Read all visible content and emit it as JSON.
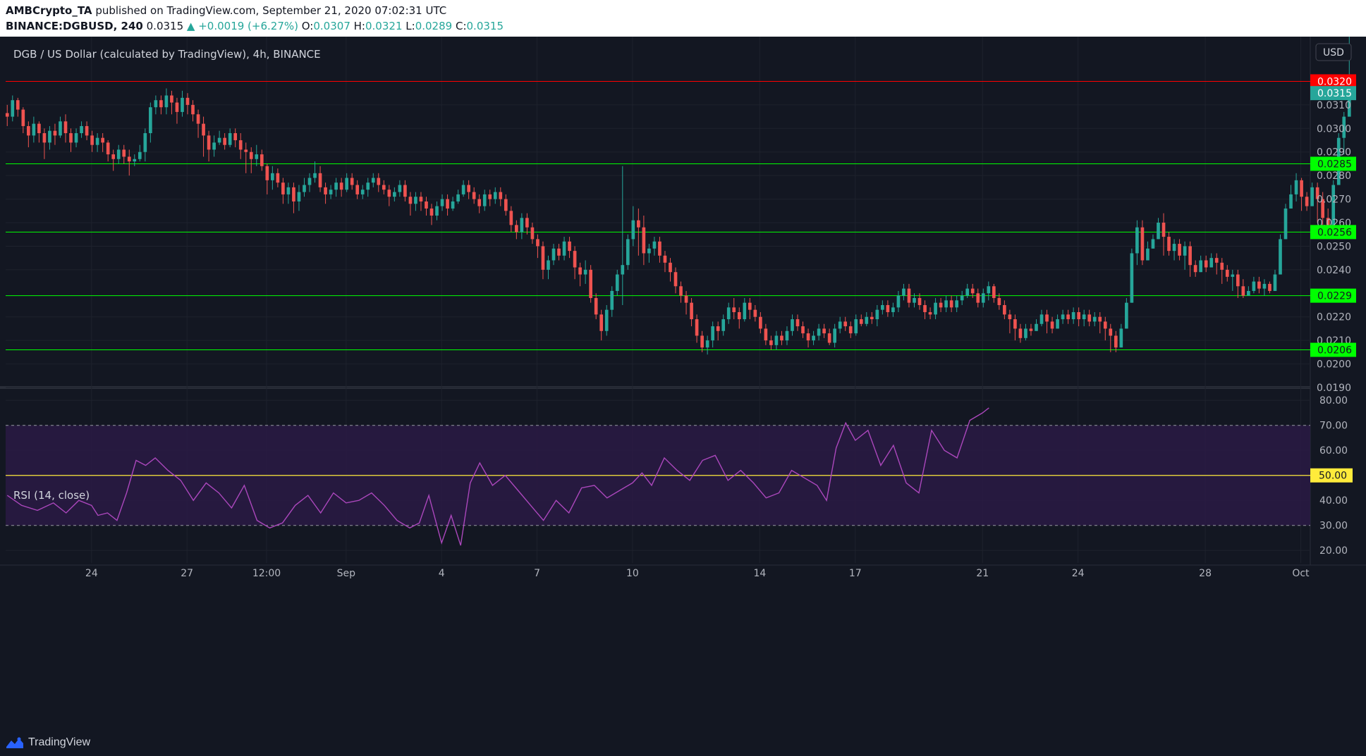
{
  "header": {
    "author": "AMBCrypto_TA",
    "published": "published on TradingView.com, September 21, 2020 07:02:31 UTC",
    "symbol": "BINANCE:DGBUSD, 240",
    "last": "0.0315",
    "change": "▲ +0.0019 (+6.27%)",
    "o_label": "O:",
    "o": "0.0307",
    "h_label": "H:",
    "h": "0.0321",
    "l_label": "L:",
    "l": "0.0289",
    "c_label": "C:",
    "c": "0.0315"
  },
  "footer": {
    "brand": "TradingView"
  },
  "colors": {
    "background": "#131722",
    "up": "#26a69a",
    "down": "#ef5350",
    "resistance": "#ff0000",
    "support": "#00ff00",
    "rsi": "#ab47bc",
    "rsi_band": "#2a1a44",
    "rsi_mid": "#ffeb3b"
  },
  "chart_data": [
    {
      "type": "candlestick",
      "title": "DGB / US Dollar (calculated by TradingView), 4h, BINANCE",
      "currency_button": "USD",
      "ylim": [
        0.019,
        0.0333
      ],
      "y_ticks": [
        "0.0310",
        "0.0300",
        "0.0290",
        "0.0280",
        "0.0270",
        "0.0260",
        "0.0250",
        "0.0240",
        "0.0220",
        "0.0210",
        "0.0200",
        "0.0190"
      ],
      "x_ticks": [
        {
          "label": "24",
          "day": 24
        },
        {
          "label": "27",
          "day": 27
        },
        {
          "label": "12:00",
          "day": 29.5
        },
        {
          "label": "Sep",
          "day": 32
        },
        {
          "label": "4",
          "day": 35
        },
        {
          "label": "7",
          "day": 38
        },
        {
          "label": "10",
          "day": 41
        },
        {
          "label": "14",
          "day": 45
        },
        {
          "label": "17",
          "day": 48
        },
        {
          "label": "21",
          "day": 52
        },
        {
          "label": "24",
          "day": 55
        },
        {
          "label": "28",
          "day": 59
        },
        {
          "label": "Oct",
          "day": 62
        }
      ],
      "x_range_days": [
        21.3,
        62.3
      ],
      "levels": [
        {
          "value": 0.032,
          "label": "0.0320",
          "kind": "resistance"
        },
        {
          "value": 0.0285,
          "label": "0.0285",
          "kind": "support"
        },
        {
          "value": 0.0256,
          "label": "0.0256",
          "kind": "support"
        },
        {
          "value": 0.0229,
          "label": "0.0229",
          "kind": "support"
        },
        {
          "value": 0.0206,
          "label": "0.0206",
          "kind": "support"
        }
      ],
      "last_price": {
        "value": 0.0315,
        "label": "0.0315"
      },
      "start_day": 21.35,
      "bar_days": 0.1667,
      "closes": [
        0.0305,
        0.0312,
        0.0308,
        0.0301,
        0.0297,
        0.0302,
        0.0298,
        0.0294,
        0.0299,
        0.0297,
        0.0303,
        0.0298,
        0.0294,
        0.0298,
        0.0301,
        0.0297,
        0.0293,
        0.0296,
        0.0294,
        0.0289,
        0.0287,
        0.0291,
        0.0288,
        0.0286,
        0.0287,
        0.029,
        0.0298,
        0.0309,
        0.0312,
        0.0309,
        0.0314,
        0.0311,
        0.0307,
        0.0313,
        0.031,
        0.0306,
        0.0302,
        0.0297,
        0.0291,
        0.0294,
        0.0296,
        0.0293,
        0.0298,
        0.0295,
        0.0291,
        0.029,
        0.0287,
        0.0289,
        0.0284,
        0.0278,
        0.0281,
        0.0277,
        0.0272,
        0.0275,
        0.0269,
        0.0273,
        0.0276,
        0.0279,
        0.0281,
        0.0275,
        0.0272,
        0.0274,
        0.0277,
        0.0274,
        0.0279,
        0.0276,
        0.0272,
        0.0274,
        0.0277,
        0.0279,
        0.0276,
        0.0274,
        0.0271,
        0.0273,
        0.0276,
        0.0271,
        0.0268,
        0.0271,
        0.0269,
        0.0266,
        0.0263,
        0.0267,
        0.027,
        0.0266,
        0.0269,
        0.0272,
        0.0276,
        0.0273,
        0.027,
        0.0267,
        0.0272,
        0.027,
        0.0273,
        0.027,
        0.0265,
        0.0259,
        0.0256,
        0.0262,
        0.0258,
        0.0253,
        0.025,
        0.024,
        0.0244,
        0.0249,
        0.0246,
        0.0252,
        0.0248,
        0.0241,
        0.0238,
        0.024,
        0.0228,
        0.0221,
        0.0214,
        0.0223,
        0.0231,
        0.0238,
        0.0242,
        0.0253,
        0.0261,
        0.0258,
        0.0247,
        0.0249,
        0.0252,
        0.0246,
        0.0243,
        0.0239,
        0.0233,
        0.0229,
        0.0226,
        0.0219,
        0.0212,
        0.0207,
        0.021,
        0.0216,
        0.0214,
        0.0219,
        0.0224,
        0.0222,
        0.0219,
        0.0226,
        0.0223,
        0.022,
        0.0215,
        0.021,
        0.0208,
        0.0212,
        0.021,
        0.0214,
        0.0219,
        0.0216,
        0.0213,
        0.021,
        0.0212,
        0.0215,
        0.0213,
        0.0209,
        0.0215,
        0.0218,
        0.0216,
        0.0213,
        0.0219,
        0.0217,
        0.022,
        0.0219,
        0.0223,
        0.0225,
        0.0222,
        0.0224,
        0.0229,
        0.0232,
        0.0226,
        0.0228,
        0.0225,
        0.0222,
        0.0221,
        0.0226,
        0.0224,
        0.0227,
        0.0224,
        0.0227,
        0.0229,
        0.0232,
        0.023,
        0.0226,
        0.023,
        0.0233,
        0.0228,
        0.0225,
        0.0221,
        0.0219,
        0.0215,
        0.0211,
        0.0215,
        0.0214,
        0.0217,
        0.0221,
        0.0218,
        0.0215,
        0.0219,
        0.0221,
        0.0219,
        0.0222,
        0.0219,
        0.0221,
        0.0218,
        0.022,
        0.0218,
        0.0215,
        0.0212,
        0.0207,
        0.0215,
        0.0226,
        0.0247,
        0.0258,
        0.0244,
        0.0249,
        0.0253,
        0.026,
        0.0254,
        0.0248,
        0.0251,
        0.0246,
        0.025,
        0.0242,
        0.0239,
        0.0244,
        0.0241,
        0.0245,
        0.0243,
        0.024,
        0.0237,
        0.0238,
        0.0233,
        0.0229,
        0.0231,
        0.0235,
        0.0232,
        0.0234,
        0.0231,
        0.0238,
        0.0253,
        0.0266,
        0.0272,
        0.0278,
        0.0271,
        0.0267,
        0.0275,
        0.027,
        0.0262,
        0.0258,
        0.0276,
        0.0296,
        0.0305,
        0.0315
      ],
      "highs": [
        0.031,
        0.0314,
        0.0313,
        0.0309,
        0.0303,
        0.0305,
        0.0303,
        0.03,
        0.0301,
        0.0302,
        0.0305,
        0.0306,
        0.03,
        0.03,
        0.0303,
        0.0303,
        0.0299,
        0.0298,
        0.0298,
        0.0295,
        0.0291,
        0.0293,
        0.0293,
        0.0291,
        0.0289,
        0.0293,
        0.03,
        0.0311,
        0.0314,
        0.0314,
        0.0317,
        0.0316,
        0.0313,
        0.0316,
        0.0315,
        0.0312,
        0.0308,
        0.0305,
        0.0299,
        0.0297,
        0.0299,
        0.0298,
        0.03,
        0.03,
        0.0298,
        0.0294,
        0.0292,
        0.0293,
        0.0291,
        0.0285,
        0.0284,
        0.0283,
        0.0279,
        0.0277,
        0.0277,
        0.0276,
        0.0279,
        0.0281,
        0.0286,
        0.0284,
        0.0277,
        0.0276,
        0.0279,
        0.0279,
        0.0281,
        0.0281,
        0.0278,
        0.0276,
        0.0279,
        0.0281,
        0.0281,
        0.0278,
        0.0276,
        0.0275,
        0.0278,
        0.0278,
        0.0273,
        0.0273,
        0.0273,
        0.0271,
        0.0268,
        0.0269,
        0.0272,
        0.0272,
        0.0271,
        0.0274,
        0.0278,
        0.0278,
        0.0275,
        0.0272,
        0.0274,
        0.0274,
        0.0275,
        0.0275,
        0.0272,
        0.0267,
        0.0261,
        0.0264,
        0.0264,
        0.026,
        0.0255,
        0.0252,
        0.0246,
        0.0251,
        0.0251,
        0.0254,
        0.0254,
        0.025,
        0.0243,
        0.0244,
        0.0242,
        0.023,
        0.0223,
        0.0225,
        0.0233,
        0.024,
        0.0284,
        0.0255,
        0.0267,
        0.0266,
        0.0263,
        0.0251,
        0.0254,
        0.0254,
        0.0248,
        0.0245,
        0.0241,
        0.0235,
        0.0231,
        0.0228,
        0.0221,
        0.0214,
        0.0212,
        0.0218,
        0.0218,
        0.0221,
        0.0226,
        0.0228,
        0.0224,
        0.0228,
        0.0228,
        0.0225,
        0.0222,
        0.0217,
        0.0212,
        0.0214,
        0.0214,
        0.0216,
        0.0221,
        0.0221,
        0.0218,
        0.0215,
        0.0214,
        0.0217,
        0.0217,
        0.0215,
        0.0217,
        0.022,
        0.022,
        0.0218,
        0.0221,
        0.0221,
        0.0222,
        0.0222,
        0.0225,
        0.0227,
        0.0227,
        0.0226,
        0.0231,
        0.0234,
        0.0234,
        0.023,
        0.023,
        0.0227,
        0.0224,
        0.0228,
        0.0228,
        0.0229,
        0.0229,
        0.0229,
        0.0231,
        0.0234,
        0.0234,
        0.0232,
        0.0232,
        0.0235,
        0.0234,
        0.023,
        0.0227,
        0.0223,
        0.0221,
        0.0217,
        0.0217,
        0.0217,
        0.0219,
        0.0223,
        0.0223,
        0.022,
        0.0221,
        0.0223,
        0.0223,
        0.0224,
        0.0224,
        0.0223,
        0.0223,
        0.0222,
        0.0222,
        0.022,
        0.0217,
        0.0214,
        0.0217,
        0.0228,
        0.0249,
        0.0261,
        0.0261,
        0.0252,
        0.0255,
        0.0262,
        0.0264,
        0.0256,
        0.0253,
        0.0253,
        0.0252,
        0.0252,
        0.0244,
        0.0246,
        0.0246,
        0.0247,
        0.0247,
        0.0245,
        0.0242,
        0.024,
        0.024,
        0.0236,
        0.0233,
        0.0237,
        0.0237,
        0.0236,
        0.0235,
        0.024,
        0.0255,
        0.0268,
        0.0276,
        0.0281,
        0.0279,
        0.0273,
        0.0277,
        0.0277,
        0.0273,
        0.0266,
        0.0278,
        0.0298,
        0.0307,
        0.0321
      ],
      "lows": [
        0.0301,
        0.0303,
        0.0305,
        0.0298,
        0.0292,
        0.0294,
        0.0294,
        0.0287,
        0.0291,
        0.0293,
        0.0296,
        0.0294,
        0.029,
        0.0292,
        0.0296,
        0.0295,
        0.029,
        0.029,
        0.029,
        0.0286,
        0.0282,
        0.0285,
        0.0285,
        0.028,
        0.0284,
        0.0286,
        0.0286,
        0.0294,
        0.0306,
        0.0306,
        0.0306,
        0.0306,
        0.0302,
        0.0305,
        0.0306,
        0.0303,
        0.0296,
        0.0288,
        0.0286,
        0.0288,
        0.0293,
        0.0291,
        0.0292,
        0.0292,
        0.0287,
        0.0281,
        0.0281,
        0.0284,
        0.0282,
        0.0272,
        0.0274,
        0.0275,
        0.0268,
        0.0268,
        0.0264,
        0.0265,
        0.0271,
        0.0273,
        0.0277,
        0.0273,
        0.0268,
        0.027,
        0.0271,
        0.0271,
        0.0273,
        0.0274,
        0.027,
        0.027,
        0.0271,
        0.0275,
        0.0273,
        0.0272,
        0.0267,
        0.0269,
        0.0271,
        0.0269,
        0.0263,
        0.0265,
        0.0265,
        0.0263,
        0.0259,
        0.0261,
        0.0265,
        0.0263,
        0.0265,
        0.0268,
        0.0271,
        0.027,
        0.0268,
        0.0264,
        0.0265,
        0.0267,
        0.0268,
        0.0267,
        0.0263,
        0.0256,
        0.0253,
        0.0253,
        0.0255,
        0.0251,
        0.0245,
        0.0236,
        0.0236,
        0.0242,
        0.0244,
        0.0244,
        0.0245,
        0.0236,
        0.0233,
        0.0234,
        0.0226,
        0.0219,
        0.021,
        0.0212,
        0.022,
        0.0229,
        0.0225,
        0.024,
        0.025,
        0.0246,
        0.0242,
        0.0243,
        0.0246,
        0.0243,
        0.0239,
        0.0235,
        0.023,
        0.0226,
        0.0221,
        0.0216,
        0.0209,
        0.0205,
        0.0204,
        0.0207,
        0.021,
        0.0212,
        0.0217,
        0.0219,
        0.0215,
        0.0218,
        0.0219,
        0.0218,
        0.0213,
        0.0208,
        0.0206,
        0.0206,
        0.0208,
        0.0208,
        0.0212,
        0.0214,
        0.0211,
        0.0207,
        0.0208,
        0.021,
        0.0211,
        0.0208,
        0.0207,
        0.0213,
        0.0214,
        0.0211,
        0.0212,
        0.0216,
        0.0216,
        0.0217,
        0.0216,
        0.0221,
        0.022,
        0.022,
        0.0222,
        0.0227,
        0.0224,
        0.0224,
        0.0223,
        0.0219,
        0.0219,
        0.0219,
        0.0222,
        0.0222,
        0.0222,
        0.0222,
        0.0225,
        0.0228,
        0.0228,
        0.0224,
        0.0224,
        0.0227,
        0.0226,
        0.0223,
        0.0219,
        0.0213,
        0.021,
        0.0209,
        0.021,
        0.0212,
        0.0215,
        0.0216,
        0.0213,
        0.0213,
        0.0217,
        0.0217,
        0.0217,
        0.0217,
        0.0216,
        0.0216,
        0.0216,
        0.0216,
        0.0213,
        0.021,
        0.0205,
        0.0205,
        0.0213,
        0.0224,
        0.0245,
        0.0242,
        0.0242,
        0.0247,
        0.0251,
        0.0253,
        0.0246,
        0.0246,
        0.0244,
        0.0244,
        0.024,
        0.0237,
        0.0237,
        0.0239,
        0.0239,
        0.0241,
        0.0238,
        0.0234,
        0.0235,
        0.0231,
        0.0228,
        0.0228,
        0.0229,
        0.023,
        0.023,
        0.0229,
        0.023,
        0.0236,
        0.0251,
        0.0264,
        0.027,
        0.0269,
        0.0265,
        0.0265,
        0.0268,
        0.026,
        0.0254,
        0.0256,
        0.0274,
        0.0289,
        0.0289
      ]
    },
    {
      "type": "line",
      "title": "RSI (14, close)",
      "ylim": [
        15,
        84
      ],
      "y_ticks": [
        "80.00",
        "70.00",
        "60.00",
        "40.00",
        "30.00",
        "20.00"
      ],
      "upper": 70,
      "middle": 50,
      "lower": 30,
      "middle_label": "50.00",
      "x": [
        21.35,
        21.8,
        22.3,
        22.8,
        23.2,
        23.6,
        24.0,
        24.2,
        24.5,
        24.8,
        25.1,
        25.4,
        25.7,
        26.0,
        26.4,
        26.8,
        27.2,
        27.6,
        28.0,
        28.4,
        28.8,
        29.2,
        29.6,
        30.0,
        30.4,
        30.8,
        31.2,
        31.6,
        32.0,
        32.4,
        32.8,
        33.2,
        33.6,
        34.0,
        34.3,
        34.6,
        35.0,
        35.3,
        35.6,
        35.9,
        36.2,
        36.6,
        37.0,
        37.4,
        37.8,
        38.2,
        38.6,
        39.0,
        39.4,
        39.8,
        40.2,
        40.6,
        41.0,
        41.3,
        41.6,
        42.0,
        42.4,
        42.8,
        43.2,
        43.6,
        44.0,
        44.4,
        44.8,
        45.2,
        45.6,
        46.0,
        46.4,
        46.8,
        47.1,
        47.4,
        47.7,
        48.0,
        48.4,
        48.8,
        49.2,
        49.6,
        50.0,
        50.4,
        50.8,
        51.2,
        51.6,
        52.0,
        52.2
      ],
      "y": [
        42,
        38,
        36,
        39,
        35,
        40,
        38,
        34,
        35,
        32,
        43,
        56,
        54,
        57,
        52,
        48,
        40,
        47,
        43,
        37,
        46,
        32,
        29,
        31,
        38,
        42,
        35,
        43,
        39,
        40,
        43,
        38,
        32,
        29,
        31,
        42,
        23,
        34,
        22,
        47,
        55,
        46,
        50,
        44,
        38,
        32,
        40,
        35,
        45,
        46,
        41,
        44,
        47,
        51,
        46,
        57,
        52,
        48,
        56,
        58,
        48,
        52,
        47,
        41,
        43,
        52,
        49,
        46,
        40,
        61,
        71,
        64,
        68,
        54,
        62,
        47,
        43,
        68,
        60,
        57,
        72,
        75,
        77
      ]
    }
  ]
}
